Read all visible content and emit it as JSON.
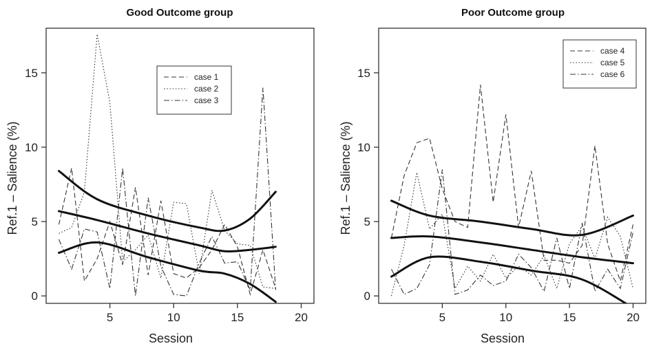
{
  "chart_data": [
    {
      "type": "line",
      "title": "Good Outcome group",
      "xlabel": "Session",
      "ylabel": "Ref.1 – Salience (%)",
      "xlim": [
        0,
        21
      ],
      "ylim": [
        -0.5,
        18
      ],
      "xticks": [
        5,
        10,
        15,
        20
      ],
      "yticks": [
        0,
        5,
        10,
        15
      ],
      "legend_position": "top-center",
      "series": [
        {
          "name": "case 1",
          "style": "dashed",
          "x": [
            1,
            2,
            3,
            4,
            5,
            6,
            7,
            8,
            9,
            10,
            11,
            12,
            13,
            14,
            15,
            16,
            17,
            18
          ],
          "y": [
            4.8,
            8.6,
            1.0,
            2.5,
            5.0,
            2.1,
            7.3,
            1.4,
            6.4,
            1.5,
            1.2,
            1.9,
            3.1,
            4.8,
            3.3,
            0.1,
            3.1,
            0.5
          ]
        },
        {
          "name": "case 2",
          "style": "dotted",
          "x": [
            1,
            2,
            3,
            4,
            5,
            6,
            7,
            8,
            9,
            10,
            11,
            12,
            13,
            14,
            15,
            16,
            17,
            18
          ],
          "y": [
            4.2,
            4.6,
            7.0,
            17.6,
            13.0,
            2.3,
            3.1,
            4.1,
            1.2,
            6.3,
            6.2,
            1.5,
            7.1,
            4.4,
            3.5,
            3.4,
            0.6,
            0.5
          ]
        },
        {
          "name": "case 3",
          "style": "dashdot",
          "x": [
            1,
            2,
            3,
            4,
            5,
            6,
            7,
            8,
            9,
            10,
            11,
            12,
            13,
            14,
            15,
            16,
            17,
            18
          ],
          "y": [
            3.8,
            1.8,
            4.5,
            4.3,
            0.5,
            8.6,
            0.0,
            6.6,
            2.0,
            0.1,
            0.0,
            2.2,
            4.0,
            2.2,
            2.3,
            0.4,
            14.0,
            0.4
          ]
        }
      ],
      "fit_lines": [
        {
          "x": [
            1,
            4,
            8,
            12,
            14,
            16,
            18
          ],
          "y": [
            8.4,
            6.5,
            5.4,
            4.6,
            4.4,
            5.2,
            7.0
          ]
        },
        {
          "x": [
            1,
            4,
            8,
            12,
            14,
            16,
            18
          ],
          "y": [
            5.7,
            5.1,
            4.2,
            3.4,
            3.0,
            3.1,
            3.3
          ]
        },
        {
          "x": [
            1,
            4,
            8,
            12,
            14,
            16,
            18
          ],
          "y": [
            2.9,
            3.6,
            2.6,
            1.7,
            1.5,
            0.8,
            -0.4
          ]
        }
      ]
    },
    {
      "type": "line",
      "title": "Poor Outcome group",
      "xlabel": "Session",
      "ylabel": "Ref.1 – Salience (%)",
      "xlim": [
        0,
        21
      ],
      "ylim": [
        -0.5,
        18
      ],
      "xticks": [
        5,
        10,
        15,
        20
      ],
      "yticks": [
        0,
        5,
        10,
        15
      ],
      "legend_position": "top-right",
      "series": [
        {
          "name": "case 4",
          "style": "dashed",
          "x": [
            1,
            2,
            3,
            4,
            5,
            6,
            7,
            8,
            9,
            10,
            11,
            12,
            13,
            14,
            15,
            16,
            17,
            18,
            19,
            20
          ],
          "y": [
            3.9,
            8.1,
            10.3,
            10.6,
            7.2,
            5.0,
            4.6,
            14.2,
            6.3,
            12.2,
            4.6,
            8.4,
            2.4,
            2.4,
            2.2,
            3.4,
            10.1,
            3.5,
            1.0,
            4.8
          ]
        },
        {
          "name": "case 5",
          "style": "dotted",
          "x": [
            1,
            2,
            3,
            4,
            5,
            6,
            7,
            8,
            9,
            10,
            11,
            12,
            13,
            14,
            15,
            16,
            17,
            18,
            19,
            20
          ],
          "y": [
            0.0,
            3.4,
            8.3,
            4.5,
            5.5,
            0.5,
            2.0,
            1.0,
            2.8,
            1.2,
            2.0,
            1.4,
            2.7,
            0.5,
            3.5,
            4.7,
            2.5,
            5.3,
            4.0,
            0.5
          ]
        },
        {
          "name": "case 6",
          "style": "dashdot",
          "x": [
            1,
            2,
            3,
            4,
            5,
            6,
            7,
            8,
            9,
            10,
            11,
            12,
            13,
            14,
            15,
            16,
            17,
            18,
            19,
            20
          ],
          "y": [
            1.8,
            0.1,
            0.5,
            2.1,
            8.5,
            0.1,
            0.4,
            1.4,
            0.7,
            1.0,
            2.8,
            1.9,
            0.3,
            3.9,
            0.5,
            4.9,
            0.3,
            1.8,
            0.5,
            4.3
          ]
        }
      ],
      "fit_lines": [
        {
          "x": [
            1,
            4,
            8,
            12,
            16,
            20
          ],
          "y": [
            6.4,
            5.4,
            5.0,
            4.5,
            4.1,
            5.4
          ]
        },
        {
          "x": [
            1,
            4,
            8,
            12,
            16,
            20
          ],
          "y": [
            3.9,
            4.0,
            3.6,
            3.1,
            2.6,
            2.2
          ]
        },
        {
          "x": [
            1,
            4,
            8,
            12,
            16,
            20
          ],
          "y": [
            1.3,
            2.6,
            2.3,
            1.7,
            1.1,
            -0.8
          ]
        }
      ]
    }
  ]
}
